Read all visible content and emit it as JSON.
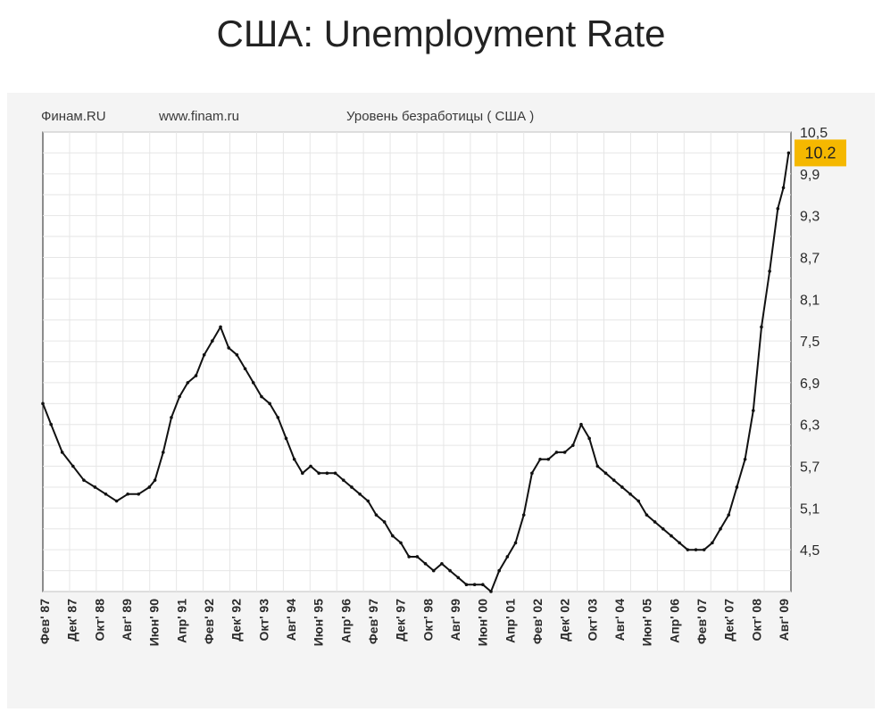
{
  "slide_title": "США: Unemployment Rate",
  "chart_header": {
    "source": "Финам.RU",
    "site": "www.finam.ru",
    "series_title": "Уровень безработицы ( США )"
  },
  "last_value_badge": "10.2",
  "colors": {
    "line": "#111111",
    "badge": "#f5b800",
    "panel": "#f4f4f4",
    "grid": "#e6e6e6"
  },
  "chart_data": {
    "type": "line",
    "title": "Уровень безработицы ( США )",
    "xlabel": "",
    "ylabel": "",
    "ylim": [
      3.9,
      10.5
    ],
    "yticks": [
      "10,5",
      "9,9",
      "9,3",
      "8,7",
      "8,1",
      "7,5",
      "6,9",
      "6,3",
      "5,7",
      "5,1",
      "4,5"
    ],
    "ytick_values": [
      10.5,
      9.9,
      9.3,
      8.7,
      8.1,
      7.5,
      6.9,
      6.3,
      5.7,
      5.1,
      4.5
    ],
    "xtick_labels": [
      "Фев' 87",
      "Дек' 87",
      "Окт' 88",
      "Авг' 89",
      "Июн' 90",
      "Апр' 91",
      "Фев' 92",
      "Дек' 92",
      "Окт' 93",
      "Авг' 94",
      "Июн' 95",
      "Апр' 96",
      "Фев' 97",
      "Дек' 97",
      "Окт' 98",
      "Авг' 99",
      "Июн' 00",
      "Апр' 01",
      "Фев' 02",
      "Дек' 02",
      "Окт' 03",
      "Авг' 04",
      "Июн' 05",
      "Апр' 06",
      "Фев' 07",
      "Дек' 07",
      "Окт' 08",
      "Авг' 09"
    ],
    "grid": true,
    "legend": "none",
    "series": [
      {
        "x": [
          1987.08,
          1987.33,
          1987.67,
          1988.0,
          1988.33,
          1988.67,
          1989.0,
          1989.33,
          1989.67,
          1990.0,
          1990.33,
          1990.5,
          1990.75,
          1991.0,
          1991.25,
          1991.5,
          1991.75,
          1992.0,
          1992.25,
          1992.5,
          1992.75,
          1993.0,
          1993.25,
          1993.5,
          1993.75,
          1994.0,
          1994.25,
          1994.5,
          1994.75,
          1995.0,
          1995.25,
          1995.5,
          1995.75,
          1996.0,
          1996.25,
          1996.5,
          1996.75,
          1997.0,
          1997.25,
          1997.5,
          1997.75,
          1998.0,
          1998.25,
          1998.5,
          1998.75,
          1999.0,
          1999.25,
          1999.5,
          1999.75,
          2000.0,
          2000.25,
          2000.5,
          2000.75,
          2001.0,
          2001.25,
          2001.5,
          2001.75,
          2002.0,
          2002.25,
          2002.5,
          2002.75,
          2003.0,
          2003.25,
          2003.5,
          2003.75,
          2004.0,
          2004.25,
          2004.5,
          2004.75,
          2005.0,
          2005.25,
          2005.5,
          2005.75,
          2006.0,
          2006.25,
          2006.5,
          2006.75,
          2007.0,
          2007.25,
          2007.5,
          2007.75,
          2008.0,
          2008.25,
          2008.5,
          2008.75,
          2009.0,
          2009.25,
          2009.5,
          2009.67,
          2009.83
        ],
        "values": [
          6.6,
          6.3,
          5.9,
          5.7,
          5.5,
          5.4,
          5.3,
          5.2,
          5.3,
          5.3,
          5.4,
          5.5,
          5.9,
          6.4,
          6.7,
          6.9,
          7.0,
          7.3,
          7.5,
          7.7,
          7.4,
          7.3,
          7.1,
          6.9,
          6.7,
          6.6,
          6.4,
          6.1,
          5.8,
          5.6,
          5.7,
          5.6,
          5.6,
          5.6,
          5.5,
          5.4,
          5.3,
          5.2,
          5.0,
          4.9,
          4.7,
          4.6,
          4.4,
          4.4,
          4.3,
          4.2,
          4.3,
          4.2,
          4.1,
          4.0,
          4.0,
          4.0,
          3.9,
          4.2,
          4.4,
          4.6,
          5.0,
          5.6,
          5.8,
          5.8,
          5.9,
          5.9,
          6.0,
          6.3,
          6.1,
          5.7,
          5.6,
          5.5,
          5.4,
          5.3,
          5.2,
          5.0,
          4.9,
          4.8,
          4.7,
          4.6,
          4.5,
          4.5,
          4.5,
          4.6,
          4.8,
          5.0,
          5.4,
          5.8,
          6.5,
          7.7,
          8.5,
          9.4,
          9.7,
          10.2
        ]
      }
    ]
  }
}
